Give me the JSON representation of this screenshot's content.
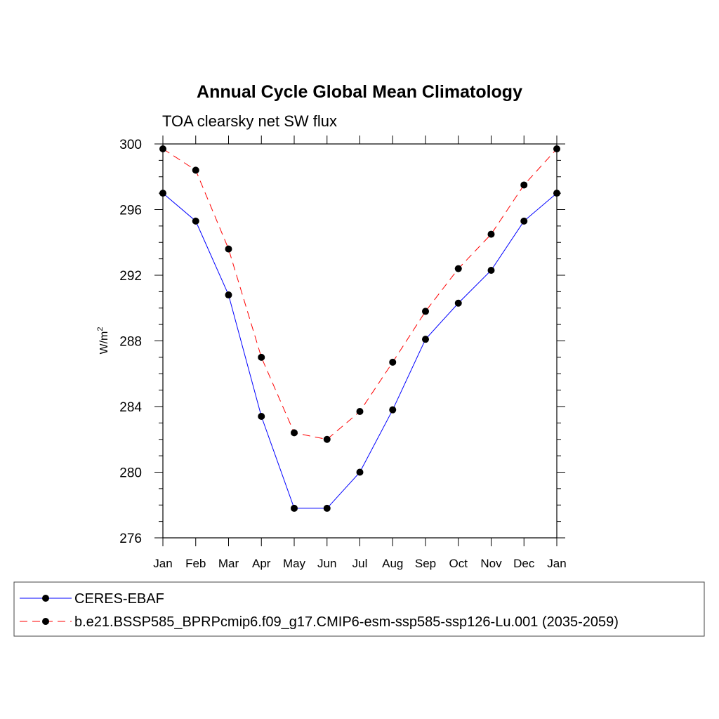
{
  "chart_data": {
    "type": "line",
    "title": "Annual Cycle Global Mean Climatology",
    "subtitle": "TOA clearsky net SW flux",
    "ylabel": "W/m",
    "ylabel_sup": "2",
    "categories": [
      "Jan",
      "Feb",
      "Mar",
      "Apr",
      "May",
      "Jun",
      "Jul",
      "Aug",
      "Sep",
      "Oct",
      "Nov",
      "Dec",
      "Jan"
    ],
    "ylim": [
      276,
      300
    ],
    "y_major_ticks": [
      "276",
      "280",
      "284",
      "288",
      "292",
      "296",
      "300"
    ],
    "series": [
      {
        "name": "CERES-EBAF",
        "color": "#0000ff",
        "dash": "solid",
        "values": [
          297.0,
          295.3,
          290.8,
          283.4,
          277.8,
          277.8,
          280.0,
          283.8,
          288.1,
          290.3,
          292.3,
          295.3,
          297.0
        ]
      },
      {
        "name": "b.e21.BSSP585_BPRPcmip6.f09_g17.CMIP6-esm-ssp585-ssp126-Lu.001 (2035-2059)",
        "color": "#ff0000",
        "dash": "dashed",
        "values": [
          299.7,
          298.4,
          293.6,
          287.0,
          282.4,
          282.0,
          283.7,
          286.7,
          289.8,
          292.4,
          294.5,
          297.5,
          299.7
        ]
      }
    ],
    "legend": {
      "position": "bottom",
      "entries": [
        "CERES-EBAF",
        "b.e21.BSSP585_BPRPcmip6.f09_g17.CMIP6-esm-ssp585-ssp126-Lu.001 (2035-2059)"
      ]
    }
  }
}
